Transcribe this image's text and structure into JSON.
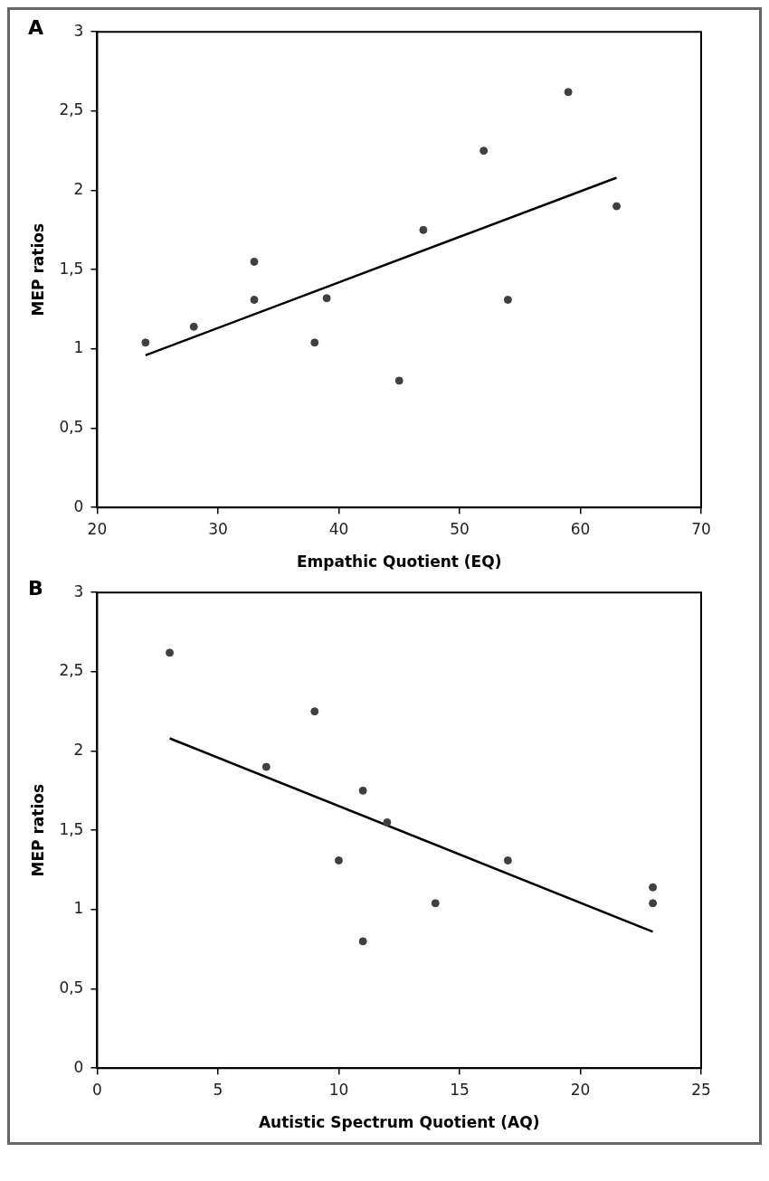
{
  "chart_data": [
    {
      "type": "scatter",
      "title": "A",
      "xlabel": "Empathic Quotient (EQ)",
      "ylabel": "MEP ratios",
      "xlim": [
        20,
        70
      ],
      "xticks": [
        20,
        30,
        40,
        50,
        60,
        70
      ],
      "ylim": [
        0,
        3
      ],
      "yticks": [
        0,
        {
          "value": 0.5,
          "label": "0,5"
        },
        1,
        {
          "value": 1.5,
          "label": "1,5"
        },
        2,
        {
          "value": 2.5,
          "label": "2,5"
        },
        3
      ],
      "grid": false,
      "legend": false,
      "series": [
        {
          "color": "#404040",
          "marker": "circle",
          "x": [
            24,
            28,
            33,
            33,
            38,
            39,
            45,
            47,
            52,
            54,
            59,
            63
          ],
          "values": [
            1.04,
            1.14,
            1.55,
            1.31,
            1.04,
            1.32,
            0.8,
            1.75,
            2.25,
            1.31,
            2.62,
            1.9
          ]
        },
        {
          "type": "line",
          "color": "#000000",
          "marker": "none",
          "x": [
            24,
            63
          ],
          "values": [
            0.96,
            2.08
          ]
        }
      ]
    },
    {
      "type": "scatter",
      "title": "B",
      "xlabel": "Autistic Spectrum Quotient (AQ)",
      "ylabel": "MEP ratios",
      "xlim": [
        0,
        25
      ],
      "xticks": [
        0,
        5,
        10,
        15,
        20,
        25
      ],
      "ylim": [
        0,
        3
      ],
      "yticks": [
        0,
        {
          "value": 0.5,
          "label": "0,5"
        },
        1,
        {
          "value": 1.5,
          "label": "1,5"
        },
        2,
        {
          "value": 2.5,
          "label": "2,5"
        },
        3
      ],
      "grid": false,
      "legend": false,
      "series": [
        {
          "color": "#404040",
          "marker": "circle",
          "x": [
            3,
            7,
            9,
            10,
            11,
            11,
            12,
            14,
            17,
            23,
            23
          ],
          "values": [
            2.62,
            1.9,
            2.25,
            1.31,
            1.75,
            0.8,
            1.55,
            1.04,
            1.31,
            1.14,
            1.04
          ]
        },
        {
          "type": "line",
          "color": "#000000",
          "marker": "none",
          "x": [
            3,
            23
          ],
          "values": [
            2.08,
            0.86
          ]
        }
      ]
    }
  ]
}
